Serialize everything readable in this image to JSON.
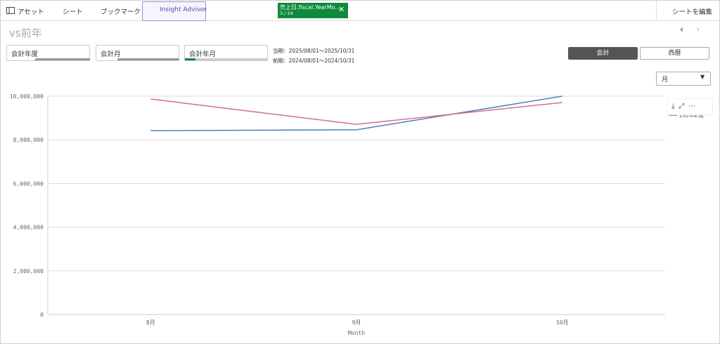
{
  "toolbar": {
    "assets": "アセット",
    "sheet": "シート",
    "bookmark": "ブックマーク",
    "insight": "Insight Advisor",
    "selection": {
      "field": "売上日.fiscal.YearMo...",
      "count": "3 / 24"
    },
    "edit": "シートを編集"
  },
  "sheet_title": "vs前年",
  "filters": [
    "会計年度",
    "会計月",
    "会計年月"
  ],
  "period": [
    "当期：2025/08/01～2025/10/31",
    "前期：2024/08/01～2024/10/31"
  ],
  "toggle": [
    "会計",
    "西暦"
  ],
  "dropdown": "月",
  "chart_data": {
    "type": "line",
    "x_label": "Month",
    "categories": [
      "8月",
      "9月",
      "10月"
    ],
    "ylim": [
      0,
      10000000
    ],
    "yticks": [
      0,
      {
        "value": 2000000,
        "label": "2,000,000"
      },
      {
        "value": 4000000,
        "label": "4,000,000"
      },
      {
        "value": 6000000,
        "label": "6,000,000"
      },
      {
        "value": 8000000,
        "label": "8,000,000"
      },
      {
        "value": 10000000,
        "label": "10,000,000"
      }
    ],
    "grid": true,
    "series": [
      {
        "color": "#4e7fb0",
        "values": [
          8420000,
          8460000,
          10000000
        ]
      },
      {
        "name": "2024年度",
        "color": "#d4708a",
        "values": [
          9870000,
          8710000,
          9710000
        ]
      }
    ]
  }
}
